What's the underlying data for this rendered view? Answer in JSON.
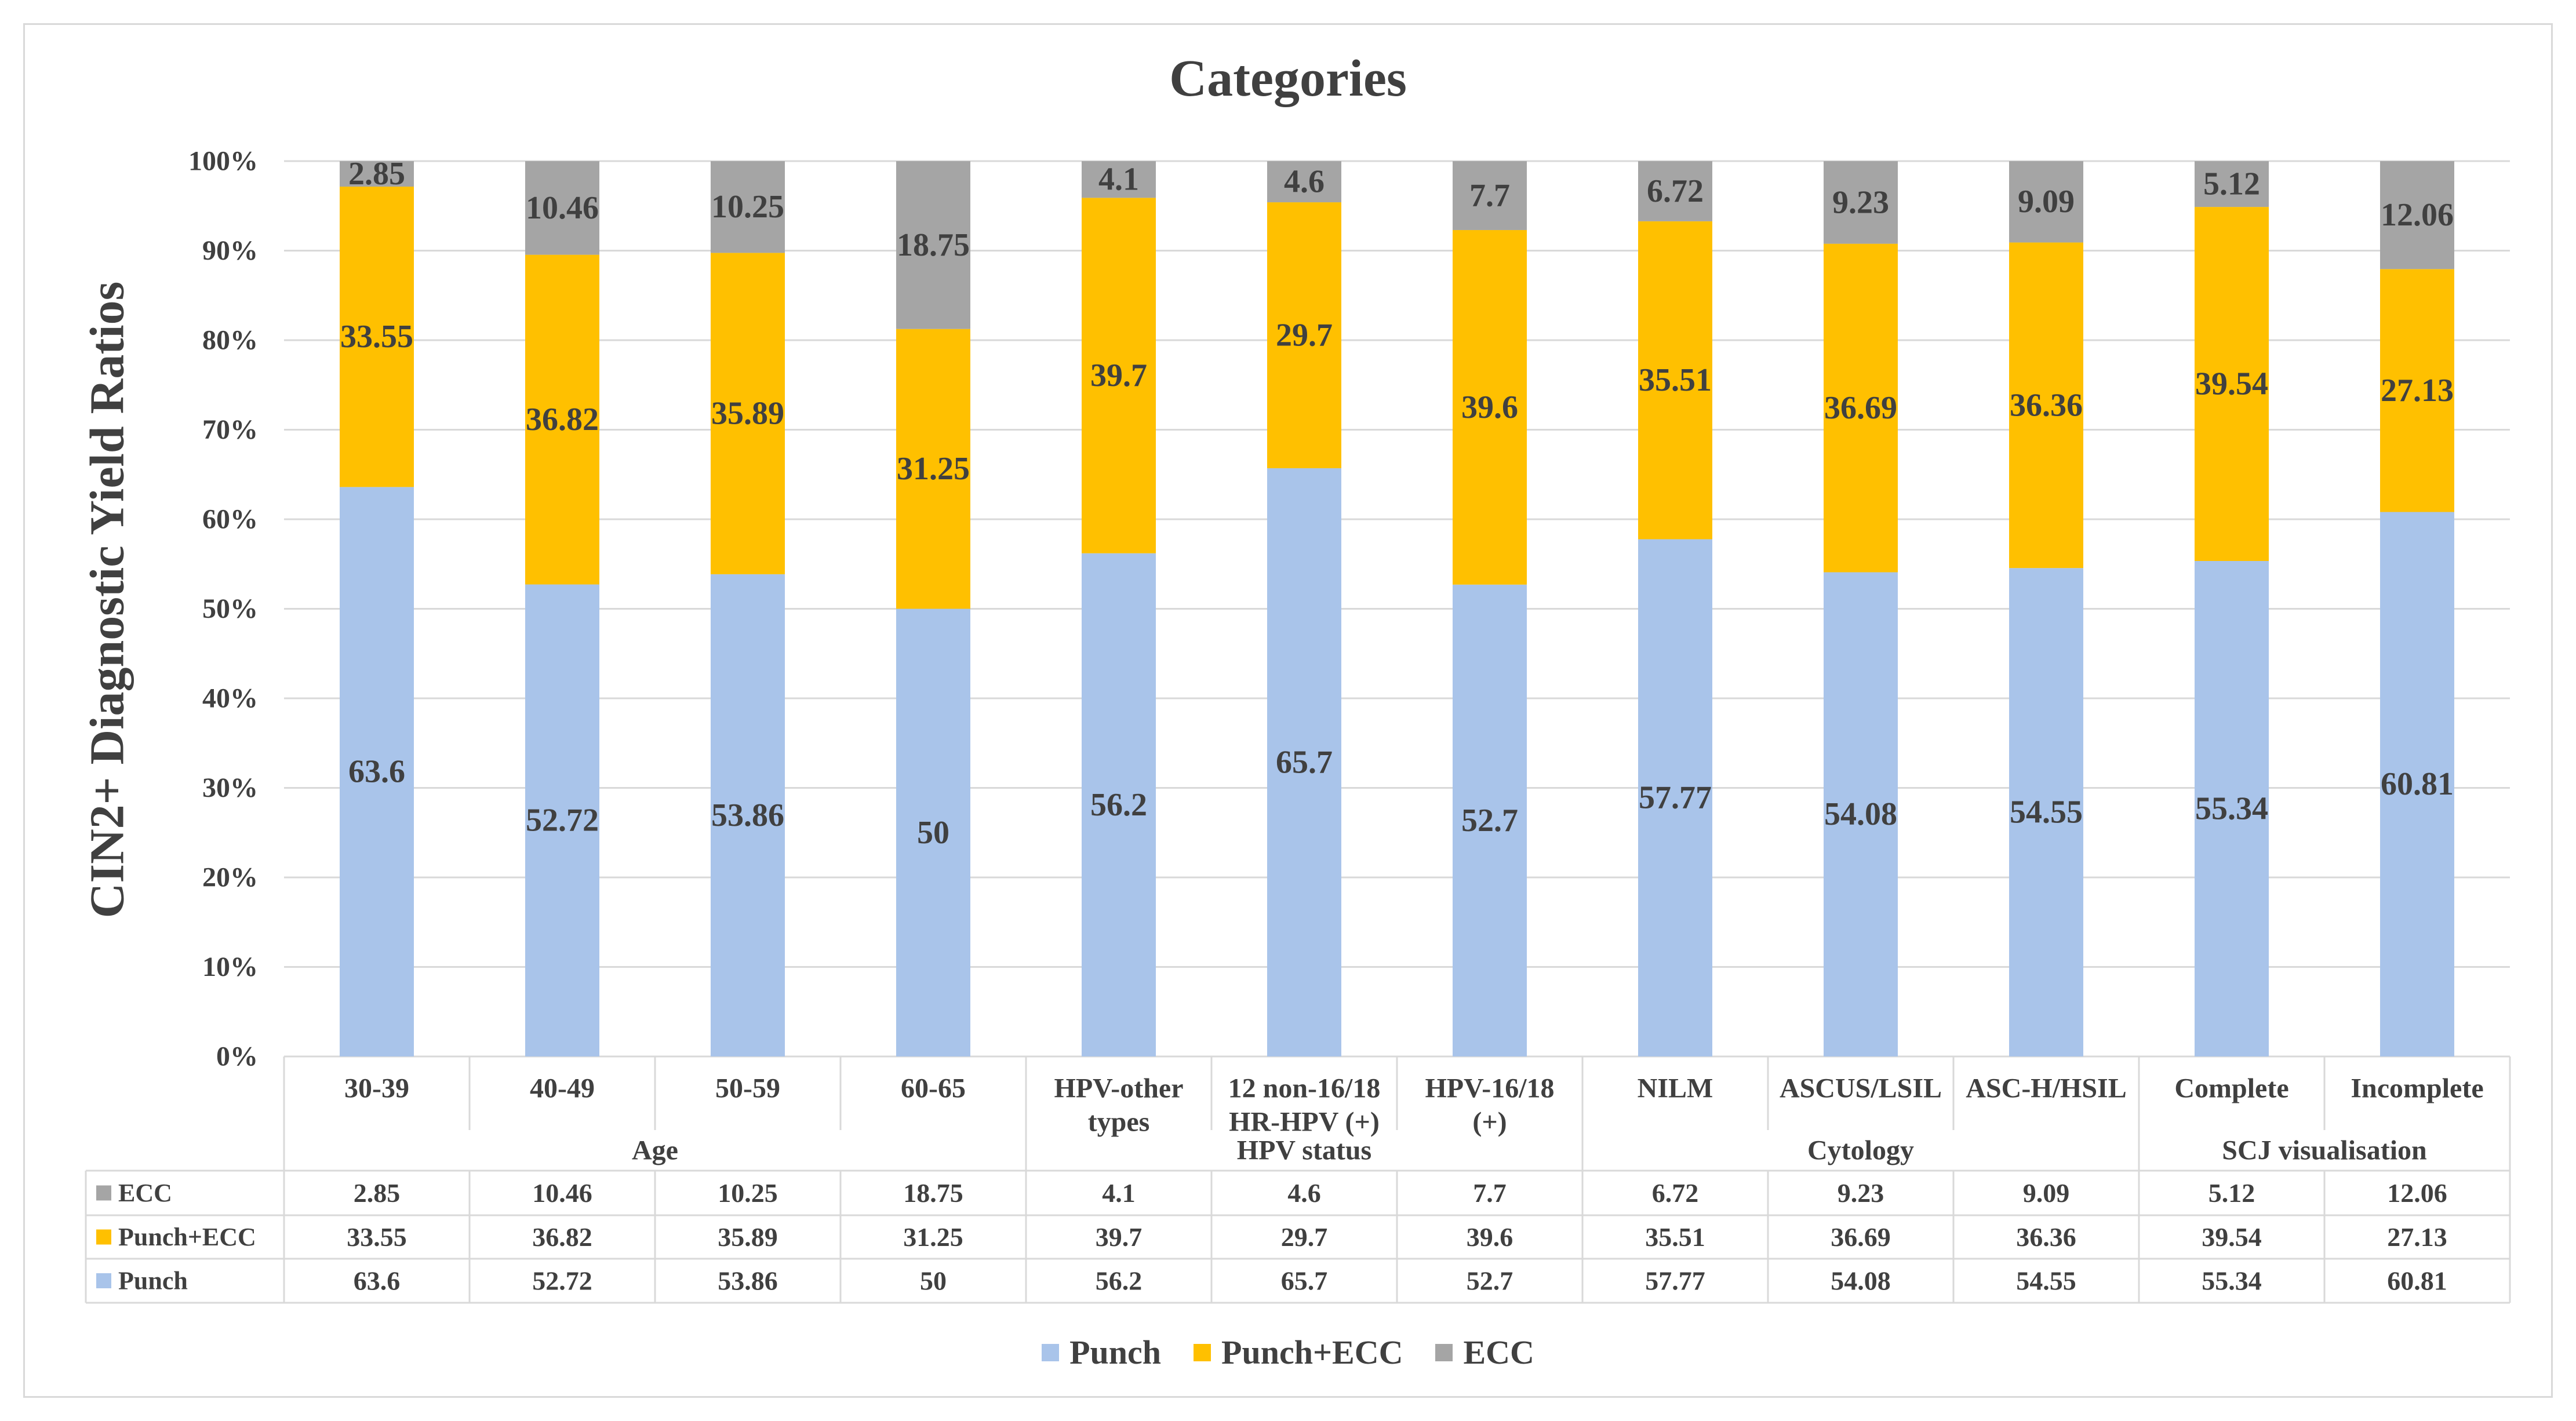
{
  "chart_data": {
    "type": "bar",
    "stacked": true,
    "percent": true,
    "title": "Categories",
    "xlabel": "",
    "ylabel": "CIN2+ Diagnostic Yield Ratios",
    "ylim": [
      0,
      100
    ],
    "yticks": [
      "0%",
      "10%",
      "20%",
      "30%",
      "40%",
      "50%",
      "60%",
      "70%",
      "80%",
      "90%",
      "100%"
    ],
    "categories": [
      [
        "30-39"
      ],
      [
        "40-49"
      ],
      [
        "50-59"
      ],
      [
        "60-65"
      ],
      [
        "HPV-other",
        "types"
      ],
      [
        "12 non-16/18",
        "HR-HPV (+)"
      ],
      [
        "HPV-16/18",
        "(+)"
      ],
      [
        "NILM"
      ],
      [
        "ASCUS/LSIL"
      ],
      [
        "ASC-H/HSIL"
      ],
      [
        "Complete"
      ],
      [
        "Incomplete"
      ]
    ],
    "groups": [
      {
        "name": "Age",
        "count": 4
      },
      {
        "name": "HPV status",
        "count": 3
      },
      {
        "name": "Cytology",
        "count": 3
      },
      {
        "name": "SCJ visualisation",
        "count": 2
      }
    ],
    "series": [
      {
        "name": "Punch",
        "color": "#a9c4ea",
        "values": [
          "63.6",
          "52.72",
          "53.86",
          "50",
          "56.2",
          "65.7",
          "52.7",
          "57.77",
          "54.08",
          "54.55",
          "55.34",
          "60.81"
        ]
      },
      {
        "name": "Punch+ECC",
        "color": "#ffc000",
        "values": [
          "33.55",
          "36.82",
          "35.89",
          "31.25",
          "39.7",
          "29.7",
          "39.6",
          "35.51",
          "36.69",
          "36.36",
          "39.54",
          "27.13"
        ]
      },
      {
        "name": "ECC",
        "color": "#a5a5a5",
        "values": [
          "2.85",
          "10.46",
          "10.25",
          "18.75",
          "4.1",
          "4.6",
          "7.7",
          "6.72",
          "9.23",
          "9.09",
          "5.12",
          "12.06"
        ]
      }
    ],
    "table_rows": [
      "ECC",
      "Punch+ECC",
      "Punch"
    ],
    "legend": [
      "Punch",
      "Punch+ECC",
      "ECC"
    ],
    "legend_position": "bottom",
    "grid": true
  }
}
